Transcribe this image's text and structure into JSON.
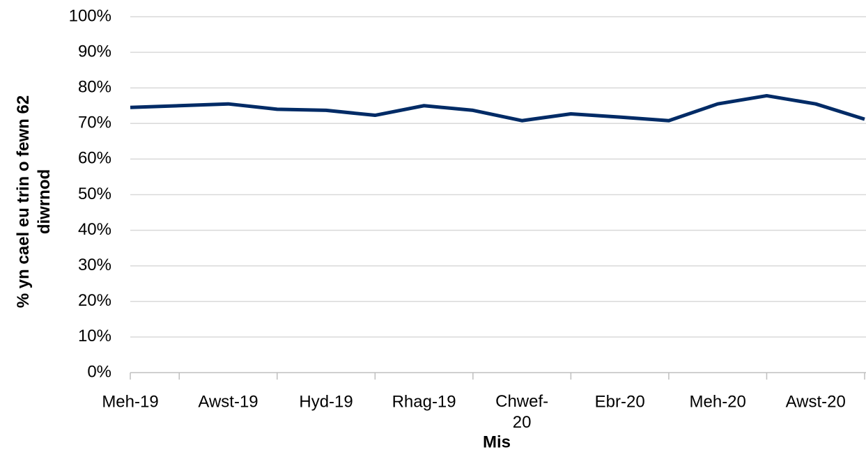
{
  "chart_data": {
    "type": "line",
    "y_label": "% yn cael eu trin o fewn 62 diwrnod",
    "x_label": "Mis",
    "categories": [
      "Meh-19",
      null,
      "Awst-19",
      null,
      "Hyd-19",
      null,
      "Rhag-19",
      null,
      "Chwef-20",
      null,
      "Ebr-20",
      null,
      "Meh-20",
      null,
      "Awst-20",
      null
    ],
    "series": [
      {
        "color": "#002b66",
        "values": [
          74.5,
          75,
          75.5,
          74,
          73.7,
          72.3,
          75,
          73.7,
          70.8,
          72.7,
          71.8,
          70.8,
          75.5,
          77.8,
          75.5,
          71.2
        ]
      }
    ],
    "ylim": [
      0,
      100
    ],
    "yticks": [
      {
        "value": 0,
        "label": "0%"
      },
      {
        "value": 10,
        "label": "10%"
      },
      {
        "value": 20,
        "label": "20%"
      },
      {
        "value": 30,
        "label": "30%"
      },
      {
        "value": 40,
        "label": "40%"
      },
      {
        "value": 50,
        "label": "50%"
      },
      {
        "value": 60,
        "label": "60%"
      },
      {
        "value": 70,
        "label": "70%"
      },
      {
        "value": 80,
        "label": "80%"
      },
      {
        "value": 90,
        "label": "90%"
      },
      {
        "value": 100,
        "label": "100%"
      }
    ],
    "grid": true
  }
}
